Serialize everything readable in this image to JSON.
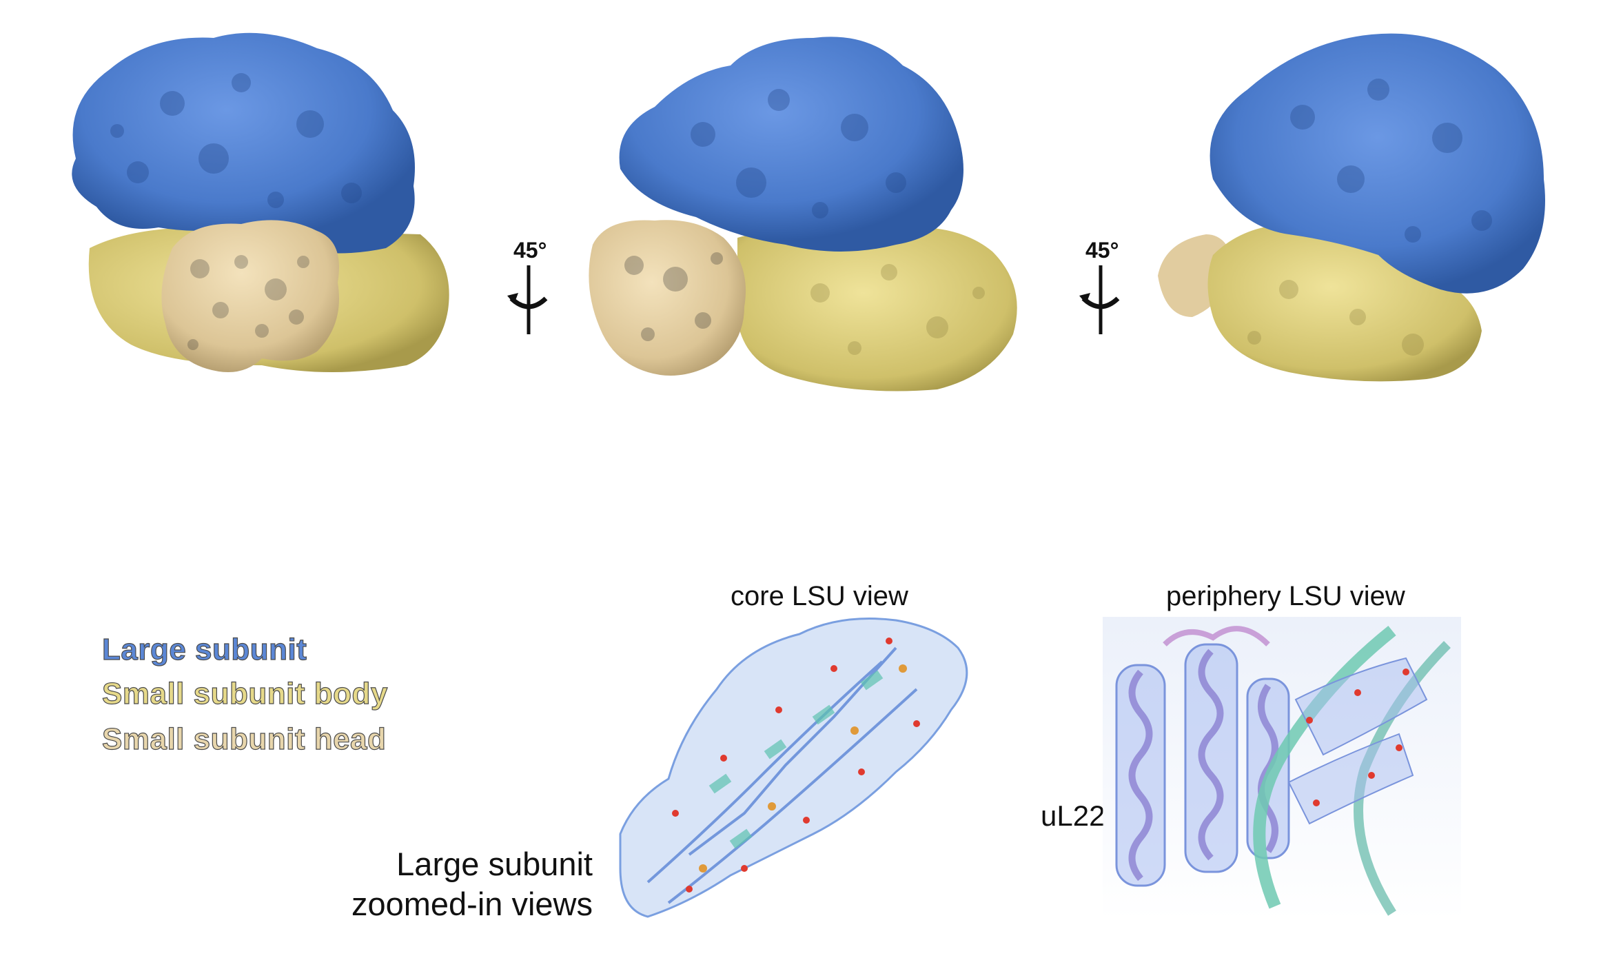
{
  "rotation_labels": [
    "45°",
    "45°"
  ],
  "legend": {
    "items": [
      {
        "label": "Large subunit",
        "color": "#5b87d6"
      },
      {
        "label": "Small subunit body",
        "color": "#e6d98a"
      },
      {
        "label": "Small subunit head",
        "color": "#e8d6ac"
      }
    ]
  },
  "zoomed": {
    "caption_line1": "Large subunit",
    "caption_line2": "zoomed-in views",
    "core_title": "core LSU view",
    "periphery_title": "periphery LSU view",
    "protein_label": "uL22"
  },
  "colors": {
    "large_subunit": "#4f7fcf",
    "small_body": "#e3d47e",
    "small_head": "#e5cfa2",
    "density_mesh": "#8fb2ec",
    "rna_green": "#6ec9b2",
    "protein_violet": "#8f86d4"
  }
}
